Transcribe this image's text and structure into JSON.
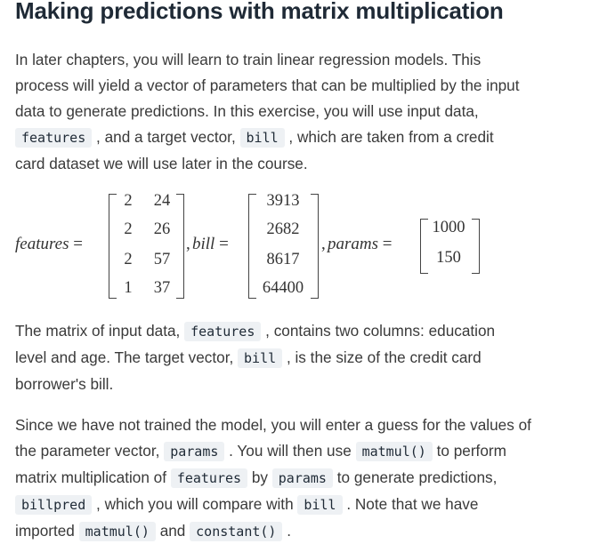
{
  "title": "Making predictions with matrix multiplication",
  "paragraph1": {
    "l1": "In later chapters, you will learn to train linear regression models. This",
    "l2": "process will yield a vector of parameters that can be multiplied by the input",
    "l3": "data to generate predictions. In this exercise, you will use input data,",
    "l4_code1": "features",
    "l4_text1": ", and a target vector,",
    "l4_code2": "bill",
    "l4_text2": ", which are taken from a credit",
    "l5": "card dataset we will use later in the course."
  },
  "math": {
    "features_label": "features",
    "bill_label": "bill",
    "params_label": "params",
    "equals": "=",
    "comma": ",",
    "features": [
      [
        "2",
        "24"
      ],
      [
        "2",
        "26"
      ],
      [
        "2",
        "57"
      ],
      [
        "1",
        "37"
      ]
    ],
    "bill": [
      "3913",
      "2682",
      "8617",
      "64400"
    ],
    "params": [
      "1000",
      "150"
    ]
  },
  "paragraph2": {
    "l1_text1": "The matrix of input data,",
    "l1_code": "features",
    "l1_text2": ", contains two columns: education",
    "l2_text1": "level and age. The target vector,",
    "l2_code": "bill",
    "l2_text2": ", is the size of the credit card",
    "l3": "borrower's bill."
  },
  "paragraph3": {
    "l1": "Since we have not trained the model, you will enter a guess for the values of",
    "l2_text1": "the parameter vector,",
    "l2_code1": "params",
    "l2_text2": ". You will then use",
    "l2_code2": "matmul()",
    "l2_text3": "to perform",
    "l3_text1": "matrix multiplication of",
    "l3_code1": "features",
    "l3_text2": "by",
    "l3_code2": "params",
    "l3_text3": "to generate predictions,",
    "l4_code1": "billpred",
    "l4_text1": ", which you will compare with",
    "l4_code2": "bill",
    "l4_text2": ". Note that we have",
    "l5_text1": "imported",
    "l5_code1": "matmul()",
    "l5_text2": "and",
    "l5_code2": "constant()",
    "l5_text3": "."
  }
}
